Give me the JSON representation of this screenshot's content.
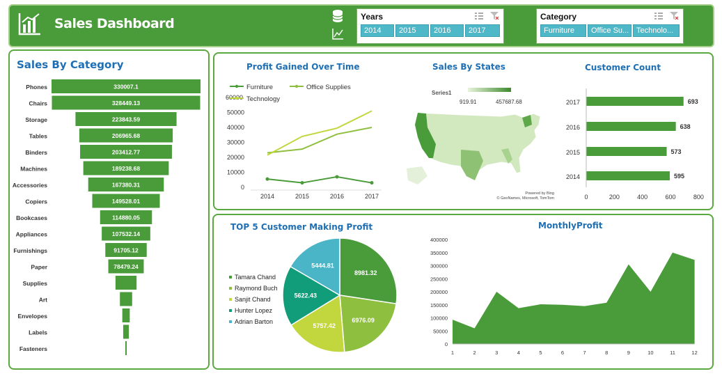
{
  "header": {
    "title": "Sales Dashboard"
  },
  "years_slicer": {
    "title": "Years",
    "items": [
      "2014",
      "2015",
      "2016",
      "2017"
    ]
  },
  "category_slicer": {
    "title": "Category",
    "items": [
      "Furniture",
      "Office Su...",
      "Technolo..."
    ]
  },
  "colors": {
    "green": "#4a9b3a",
    "lightgreen": "#8fbf3f",
    "yellowgreen": "#c2d63d",
    "teal": "#119c7a",
    "cyan": "#4ab5c7",
    "title_blue": "#1f6fb4"
  },
  "sales_by_category": {
    "title": "Sales By Category",
    "chart_data": {
      "type": "bar",
      "orientation": "horizontal-funnel",
      "categories": [
        "Phones",
        "Chairs",
        "Storage",
        "Tables",
        "Binders",
        "Machines",
        "Accessories",
        "Copiers",
        "Bookcases",
        "Appliances",
        "Furnishings",
        "Paper",
        "Supplies",
        "Art",
        "Envelopes",
        "Labels",
        "Fasteners"
      ],
      "values": [
        330007.1,
        328449.13,
        223843.59,
        206965.68,
        203412.77,
        189238.68,
        167380.31,
        149528.01,
        114880.05,
        107532.14,
        91705.12,
        78479.24,
        46673.54,
        27118.79,
        16476.4,
        12486.31,
        3024.28
      ],
      "labels": [
        "330007.1",
        "328449.13",
        "223843.59",
        "206965.68",
        "203412.77",
        "189238.68",
        "167380.31",
        "149528.01",
        "114880.05",
        "107532.14",
        "91705.12",
        "78479.24",
        "",
        "",
        "",
        "",
        ""
      ]
    }
  },
  "profit_over_time": {
    "title": "Profit Gained Over Time",
    "chart_data": {
      "type": "line",
      "x": [
        "2014",
        "2015",
        "2016",
        "2017"
      ],
      "series": [
        {
          "name": "Furniture",
          "values": [
            5500,
            3000,
            7000,
            3000
          ]
        },
        {
          "name": "Office Supplies",
          "values": [
            23000,
            25500,
            35500,
            40000
          ]
        },
        {
          "name": "Technology",
          "values": [
            21500,
            34000,
            39500,
            51000
          ]
        }
      ],
      "yticks": [
        0,
        10000,
        20000,
        30000,
        40000,
        50000,
        60000
      ],
      "ylim": [
        0,
        60000
      ]
    }
  },
  "sales_by_states": {
    "title": "Sales By States",
    "legend_series": "Series1",
    "legend_min": "919.91",
    "legend_max": "457687.68",
    "credit1": "Powered by Bing",
    "credit2": "© GeoNames, Microsoft, TomTom"
  },
  "customer_count": {
    "title": "Customer Count",
    "chart_data": {
      "type": "bar",
      "orientation": "horizontal",
      "categories": [
        "2017",
        "2016",
        "2015",
        "2014"
      ],
      "values": [
        693,
        638,
        573,
        595
      ],
      "xticks": [
        0,
        200,
        400,
        600,
        800
      ],
      "xlim": [
        0,
        800
      ]
    }
  },
  "top5_customers": {
    "title": "TOP 5 Customer Making Profit",
    "chart_data": {
      "type": "pie",
      "categories": [
        "Tamara Chand",
        "Raymond Buch",
        "Sanjit Chand",
        "Hunter Lopez",
        "Adrian Barton"
      ],
      "values": [
        8981.32,
        6976.09,
        5757.42,
        5622.43,
        5444.81
      ],
      "labels": [
        "8981.32",
        "6976.09",
        "5757.42",
        "5622.43",
        "5444.81"
      ]
    }
  },
  "monthly_profit": {
    "title": "MonthlyProfit",
    "chart_data": {
      "type": "area",
      "x": [
        1,
        2,
        3,
        4,
        5,
        6,
        7,
        8,
        9,
        10,
        11,
        12
      ],
      "values": [
        93000,
        60000,
        200000,
        137000,
        152000,
        150000,
        145000,
        158000,
        305000,
        200000,
        350000,
        322000
      ],
      "yticks": [
        0,
        50000,
        100000,
        150000,
        200000,
        250000,
        300000,
        350000,
        400000
      ],
      "ylim": [
        0,
        400000
      ]
    }
  }
}
